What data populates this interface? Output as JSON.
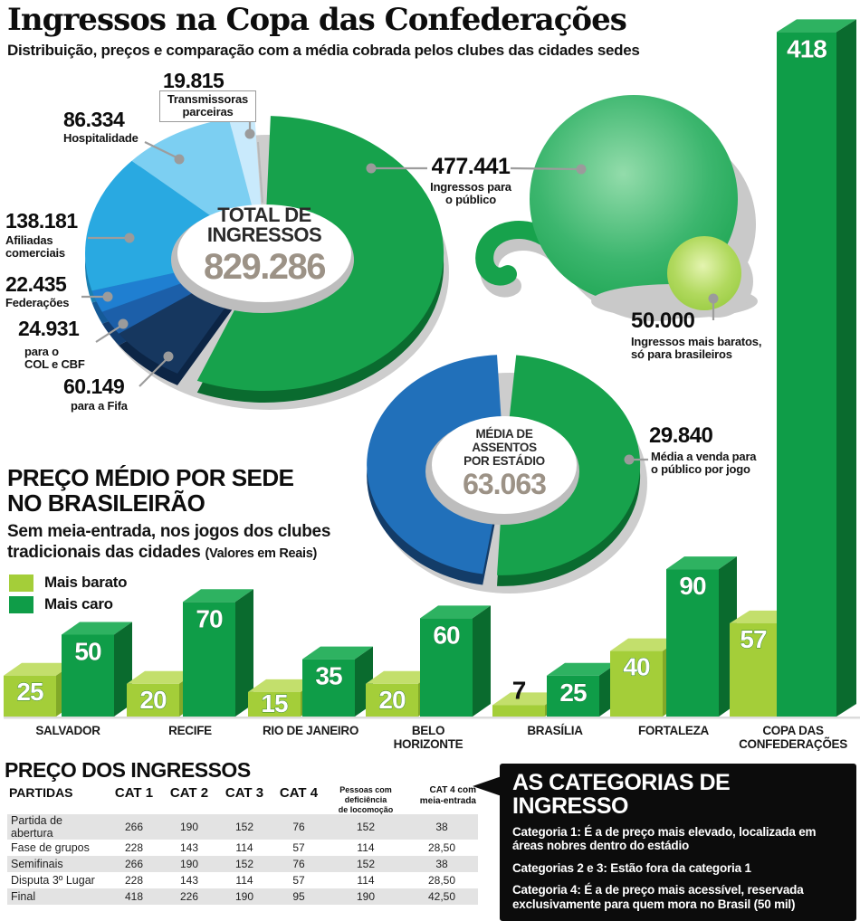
{
  "header": {
    "title": "Ingressos na Copa das Confederações",
    "subtitle": "Distribuição, preços e comparação com a média cobrada pelos clubes das cidades sedes"
  },
  "chart_data": [
    {
      "type": "pie",
      "name": "total-de-ingressos",
      "center_label_lines": [
        "TOTAL DE",
        "INGRESSOS"
      ],
      "total": 829286,
      "total_fmt": "829.286",
      "slices": [
        {
          "name": "publico",
          "value": 477441,
          "value_fmt": "477.441",
          "label_lines": [
            "Ingressos para",
            "o público"
          ],
          "color": "#17a24c",
          "depth_color": "#0a6b2f"
        },
        {
          "name": "fifa",
          "value": 60149,
          "value_fmt": "60.149",
          "label_lines": [
            "para a Fifa"
          ],
          "color": "#16375f",
          "depth_color": "#0c2545"
        },
        {
          "name": "col-e-cbf",
          "value": 24931,
          "value_fmt": "24.931",
          "label_lines": [
            "para o",
            "COL e CBF"
          ],
          "color": "#1c5fa9",
          "depth_color": "#123c6e"
        },
        {
          "name": "federacoes",
          "value": 22435,
          "value_fmt": "22.435",
          "label_lines": [
            "Federações"
          ],
          "color": "#1f7fd1",
          "depth_color": "#155a97"
        },
        {
          "name": "afiliadas-comerciais",
          "value": 138181,
          "value_fmt": "138.181",
          "label_lines": [
            "Afiliadas",
            "comerciais"
          ],
          "color": "#29a9e1",
          "depth_color": "#1b7fb0"
        },
        {
          "name": "hospitalidade",
          "value": 86334,
          "value_fmt": "86.334",
          "label_lines": [
            "Hospitalidade"
          ],
          "color": "#7ccff2",
          "depth_color": "#55a9cc"
        },
        {
          "name": "transmissoras-parceiras",
          "value": 19815,
          "value_fmt": "19.815",
          "label_lines": [
            "Transmissoras",
            "parceiras"
          ],
          "color": "#c9eafc",
          "depth_color": "#93c4dd"
        }
      ],
      "highlight_bubble": {
        "value": 50000,
        "value_fmt": "50.000",
        "label_lines": [
          "Ingressos mais baratos,",
          "só para brasileiros"
        ],
        "color": "#8fc636"
      }
    },
    {
      "type": "pie",
      "name": "media-de-assentos-por-estadio",
      "center_label_lines": [
        "MÉDIA DE",
        "ASSENTOS",
        "POR ESTÁDIO"
      ],
      "total": 63063,
      "total_fmt": "63.063",
      "slices": [
        {
          "name": "venda-ao-publico",
          "value": 29840,
          "value_fmt": "29.840",
          "label_lines": [
            "Média a venda para",
            "o público por jogo"
          ],
          "color": "#17a24c",
          "depth_color": "#0a6b2f"
        },
        {
          "name": "demais-assentos",
          "value": 33223,
          "label_lines": [],
          "color": "#2170ba",
          "depth_color": "#133c68"
        }
      ]
    },
    {
      "type": "bar",
      "name": "preco-medio-por-sede",
      "title_lines": [
        "PREÇO MÉDIO POR SEDE",
        "NO BRASILEIRÃO"
      ],
      "subtitle_lines": [
        "Sem meia-entrada, nos jogos dos clubes",
        "tradicionais das cidades"
      ],
      "note": "(Valores em Reais)",
      "unit": "Reais",
      "categories": [
        [
          "SALVADOR"
        ],
        [
          "RECIFE"
        ],
        [
          "RIO DE JANEIRO"
        ],
        [
          "BELO",
          "HORIZONTE"
        ],
        [
          "BRASÍLIA"
        ],
        [
          "FORTALEZA"
        ],
        [
          "COPA DAS",
          "CONFEDERAÇÕES"
        ]
      ],
      "series": [
        {
          "name": "Mais barato",
          "color": "#a4ce39",
          "values": [
            25,
            20,
            15,
            20,
            7,
            40,
            57
          ]
        },
        {
          "name": "Mais caro",
          "color": "#0f9d48",
          "values": [
            50,
            70,
            35,
            60,
            25,
            90,
            418
          ]
        }
      ]
    }
  ],
  "price_table": {
    "title": "PREÇO DOS INGRESSOS",
    "columns": [
      "PARTIDAS",
      "CAT 1",
      "CAT 2",
      "CAT 3",
      "CAT 4",
      "Pessoas com\ndeficiência\nde locomoção",
      "CAT 4 com\nmeia-entrada"
    ],
    "rows": [
      {
        "name": "Partida de abertura",
        "values": [
          "266",
          "190",
          "152",
          "76",
          "152",
          "38"
        ]
      },
      {
        "name": "Fase de grupos",
        "values": [
          "228",
          "143",
          "114",
          "57",
          "114",
          "28,50"
        ]
      },
      {
        "name": "Semifinais",
        "values": [
          "266",
          "190",
          "152",
          "76",
          "152",
          "38"
        ]
      },
      {
        "name": "Disputa 3º Lugar",
        "values": [
          "228",
          "143",
          "114",
          "57",
          "114",
          "28,50"
        ]
      },
      {
        "name": "Final",
        "values": [
          "418",
          "226",
          "190",
          "95",
          "190",
          "42,50"
        ]
      }
    ]
  },
  "categories_box": {
    "title": "AS CATEGORIAS DE INGRESSO",
    "items": [
      {
        "lead": "Categoria 1:",
        "text": "É a de preço mais elevado, localizada em áreas nobres dentro do estádio"
      },
      {
        "lead": "Categorias 2 e 3:",
        "text": "Estão fora da categoria 1"
      },
      {
        "lead": "Categoria 4:",
        "text": "É a de preço mais acessível, reservada exclusivamente para quem mora no Brasil (50 mil)"
      }
    ]
  }
}
